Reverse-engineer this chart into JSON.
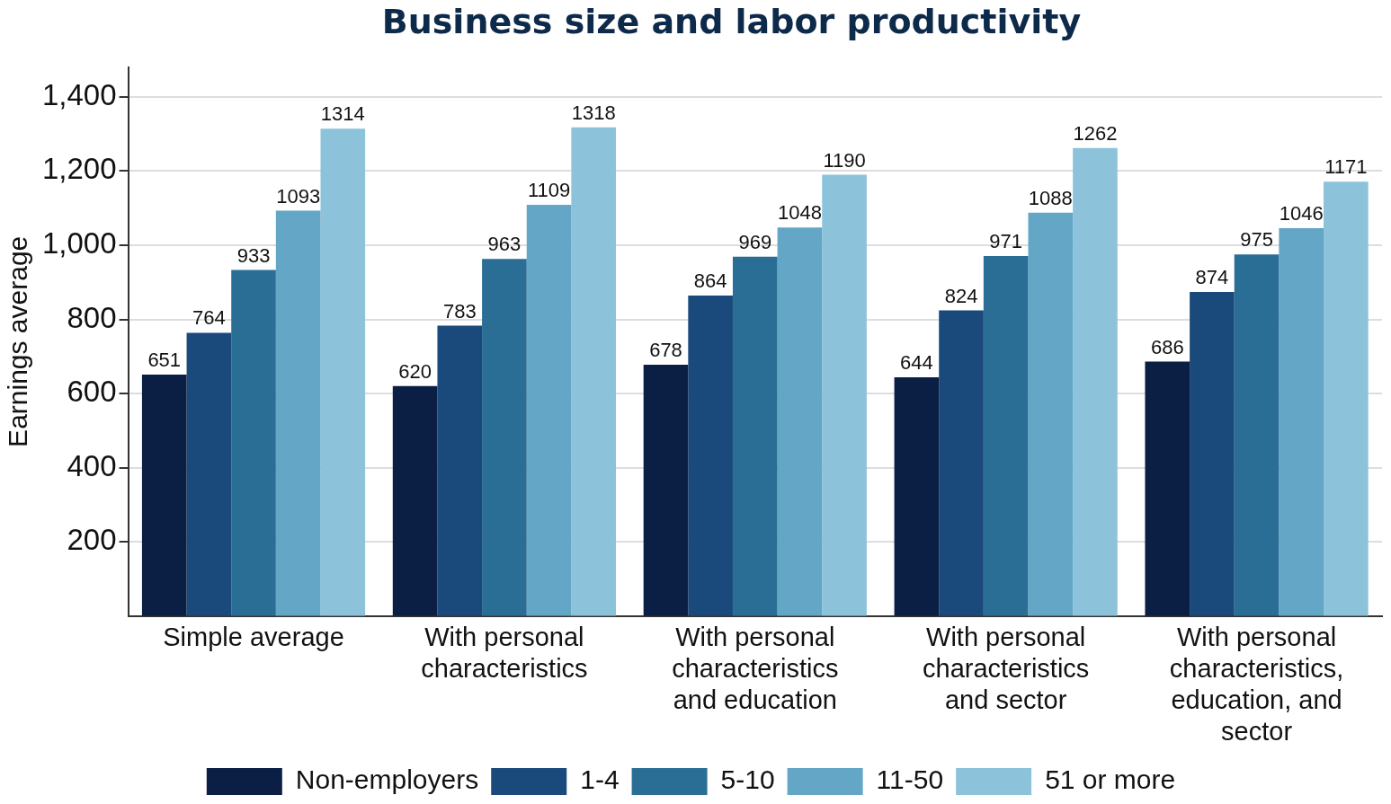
{
  "chart_data": {
    "type": "bar",
    "title": "Business size and labor productivity",
    "ylabel": "Earnings average",
    "categories": [
      "Simple average",
      "With personal characteristics",
      "With personal characteristics and education",
      "With personal characteristics and sector",
      "With personal characteristics, education, and sector"
    ],
    "series": [
      {
        "name": "Non-employers",
        "color": "#0b1f45",
        "values": [
          651,
          620,
          678,
          644,
          686
        ]
      },
      {
        "name": "1-4",
        "color": "#1a4a7b",
        "values": [
          764,
          783,
          864,
          824,
          874
        ]
      },
      {
        "name": "5-10",
        "color": "#2a6e95",
        "values": [
          933,
          963,
          969,
          971,
          975
        ]
      },
      {
        "name": "11-50",
        "color": "#63a6c6",
        "values": [
          1093,
          1109,
          1048,
          1088,
          1046
        ]
      },
      {
        "name": "51 or more",
        "color": "#8cc3da",
        "values": [
          1314,
          1318,
          1190,
          1262,
          1171
        ]
      }
    ],
    "ylim": [
      0,
      1480
    ],
    "yticks": [
      {
        "value": 200,
        "label": "200"
      },
      {
        "value": 400,
        "label": "400"
      },
      {
        "value": 600,
        "label": "600"
      },
      {
        "value": 800,
        "label": "800"
      },
      {
        "value": 1000,
        "label": "1,000"
      },
      {
        "value": 1200,
        "label": "1,200"
      },
      {
        "value": 1400,
        "label": "1,400"
      }
    ],
    "grid": "y",
    "legend": "bottom",
    "data_labels": true
  }
}
